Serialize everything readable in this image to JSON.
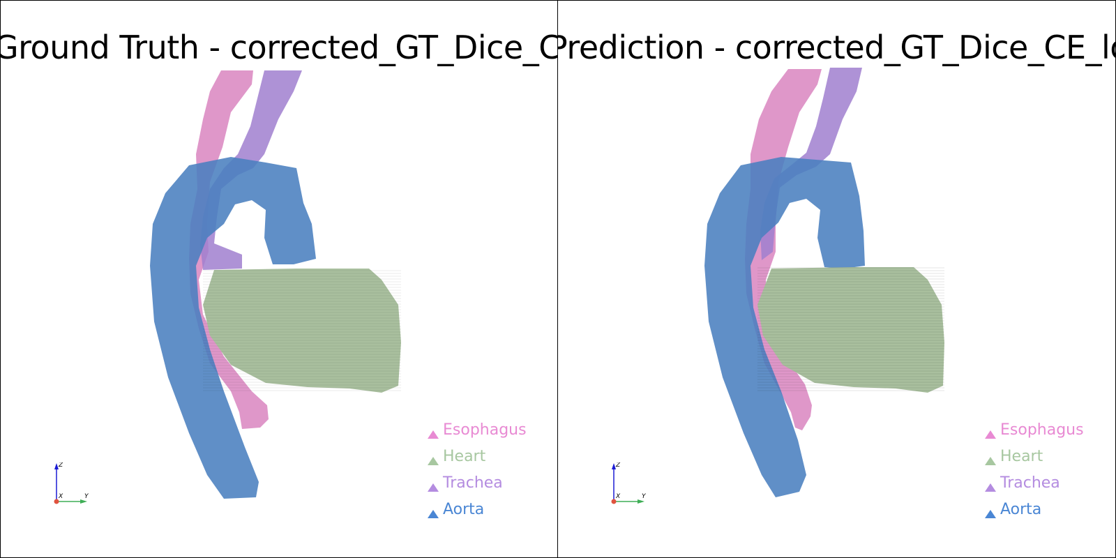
{
  "viewports": [
    {
      "title": "Ground Truth - corrected_GT_Dice_CE_loss"
    },
    {
      "title": "Prediction - corrected_GT_Dice_CE_loss"
    }
  ],
  "legend": [
    {
      "label": "Esophagus",
      "color": "#e88ad3"
    },
    {
      "label": "Heart",
      "color": "#a7c7a0"
    },
    {
      "label": "Trachea",
      "color": "#b48ce0"
    },
    {
      "label": "Aorta",
      "color": "#4a86d4"
    }
  ],
  "axes": {
    "x_label": "X",
    "y_label": "Y",
    "z_label": "Z",
    "x_color": "#e0533f",
    "y_color": "#3fae56",
    "z_color": "#1a1ad4"
  },
  "colors": {
    "esophagus": "#d985c0",
    "trachea": "#a07fcf",
    "aorta": "#4a7fbf",
    "heart": "#a9bf9e"
  }
}
